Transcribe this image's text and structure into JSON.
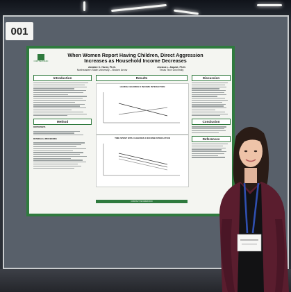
{
  "board_number": "001",
  "poster": {
    "logo_text": "NORTHEASTERN",
    "title_line1": "When Women Report Having Children, Direct Aggression",
    "title_line2": "Increases as Household Income Decreases",
    "author_left_name": "Ashalee C. Hurst, Ph.D.",
    "author_left_affil": "Northeastern State University – Broken Arrow",
    "author_right_name": "Jessica L. Alquist, Ph.D.",
    "author_right_affil": "Texas Tech University",
    "left_sections": [
      "Introduction",
      "Method"
    ],
    "method_subheads": [
      "PARTICIPANTS",
      "MATERIALS & PROCEDURES"
    ],
    "center_title": "Results",
    "chart1_title": "HAVING CHILDREN X INCOME INTERACTION",
    "chart2_title": "TIME SPENT WITH CHILDREN X INCOME INTERACTION",
    "chart_footer": "CONTACT INFORMATION",
    "right_sections": [
      "Discussion",
      "Conclusion",
      "References"
    ]
  }
}
